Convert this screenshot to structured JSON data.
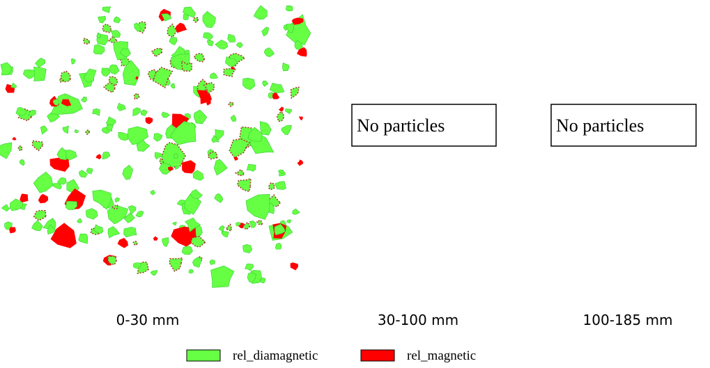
{
  "panels": [
    {
      "label": "0-30 mm"
    },
    {
      "label": "30-100 mm",
      "message": "No particles"
    },
    {
      "label": "100-185 mm",
      "message": "No particles"
    }
  ],
  "legend": [
    {
      "name": "rel_diamagnetic",
      "color": "#66ff44"
    },
    {
      "name": "rel_magnetic",
      "color": "#ff0000"
    }
  ]
}
